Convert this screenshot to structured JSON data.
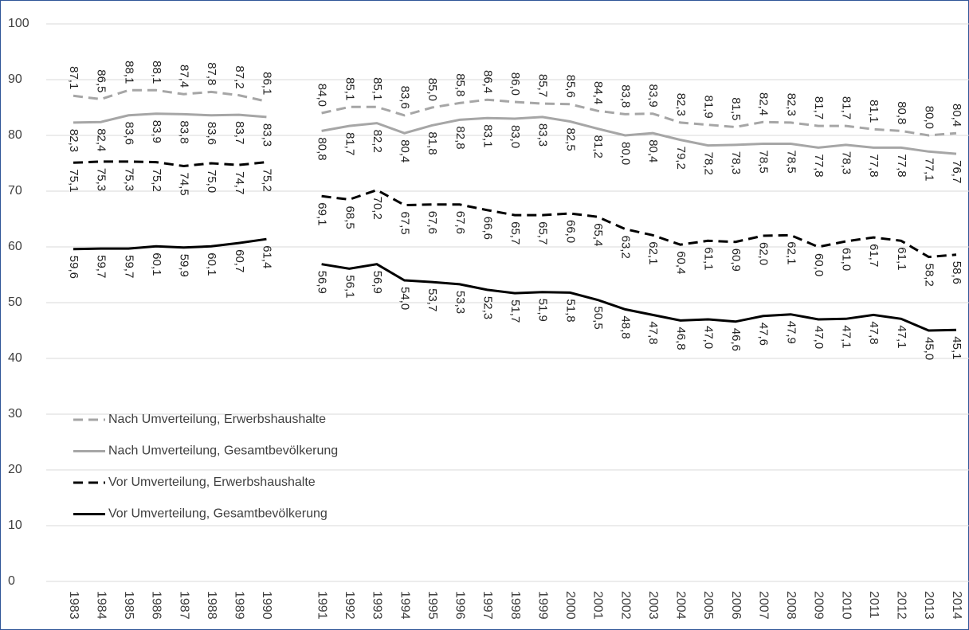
{
  "chart_data": {
    "type": "line",
    "categories": [
      "1983",
      "1984",
      "1985",
      "1986",
      "1987",
      "1988",
      "1989",
      "1990",
      null,
      "1991",
      "1992",
      "1993",
      "1994",
      "1995",
      "1996",
      "1997",
      "1998",
      "1999",
      "2000",
      "2001",
      "2002",
      "2003",
      "2004",
      "2005",
      "2006",
      "2007",
      "2008",
      "2009",
      "2010",
      "2011",
      "2012",
      "2013",
      "2014"
    ],
    "ylim": [
      0,
      100
    ],
    "yticks": [
      0,
      10,
      20,
      30,
      40,
      50,
      60,
      70,
      80,
      90,
      100
    ],
    "grid": true,
    "series": [
      {
        "name": "Nach Umverteilung, Erwerbshaushalte",
        "color": "#a6a6a6",
        "linestyle": "dashed",
        "label_position": "above",
        "values": [
          87.1,
          86.5,
          88.1,
          88.1,
          87.4,
          87.8,
          87.2,
          86.1,
          null,
          84.0,
          85.1,
          85.1,
          83.6,
          85.0,
          85.8,
          86.4,
          86.0,
          85.7,
          85.6,
          84.4,
          83.8,
          83.9,
          82.3,
          81.9,
          81.5,
          82.4,
          82.3,
          81.7,
          81.7,
          81.1,
          80.8,
          80.0,
          80.4
        ],
        "value_labels": [
          "87,1",
          "86,5",
          "88,1",
          "88,1",
          "87,4",
          "87,8",
          "87,2",
          "86,1",
          null,
          "84,0",
          "85,1",
          "85,1",
          "83,6",
          "85,0",
          "85,8",
          "86,4",
          "86,0",
          "85,7",
          "85,6",
          "84,4",
          "83,8",
          "83,9",
          "82,3",
          "81,9",
          "81,5",
          "82,4",
          "82,3",
          "81,7",
          "81,7",
          "81,1",
          "80,8",
          "80,0",
          "80,4"
        ]
      },
      {
        "name": "Nach Umverteilung, Gesamtbevölkerung",
        "color": "#a6a6a6",
        "linestyle": "solid",
        "label_position": "below",
        "values": [
          82.3,
          82.4,
          83.6,
          83.9,
          83.8,
          83.6,
          83.7,
          83.3,
          null,
          80.8,
          81.7,
          82.2,
          80.4,
          81.8,
          82.8,
          83.1,
          83.0,
          83.3,
          82.5,
          81.2,
          80.0,
          80.4,
          79.2,
          78.2,
          78.3,
          78.5,
          78.5,
          77.8,
          78.3,
          77.8,
          77.8,
          77.1,
          76.7
        ],
        "value_labels": [
          "82,3",
          "82,4",
          "83,6",
          "83,9",
          "83,8",
          "83,6",
          "83,7",
          "83,3",
          null,
          "80,8",
          "81,7",
          "82,2",
          "80,4",
          "81,8",
          "82,8",
          "83,1",
          "83,0",
          "83,3",
          "82,5",
          "81,2",
          "80,0",
          "80,4",
          "79,2",
          "78,2",
          "78,3",
          "78,5",
          "78,5",
          "77,8",
          "78,3",
          "77,8",
          "77,8",
          "77,1",
          "76,7"
        ]
      },
      {
        "name": "Vor Umverteilung, Erwerbshaushalte",
        "color": "#000000",
        "linestyle": "dashed",
        "label_position": "below",
        "values": [
          75.1,
          75.3,
          75.3,
          75.2,
          74.5,
          75.0,
          74.7,
          75.2,
          null,
          69.1,
          68.5,
          70.2,
          67.5,
          67.6,
          67.6,
          66.6,
          65.7,
          65.7,
          66.0,
          65.4,
          63.2,
          62.1,
          60.4,
          61.1,
          60.9,
          62.0,
          62.1,
          60.0,
          61.0,
          61.7,
          61.1,
          58.2,
          58.6
        ],
        "value_labels": [
          "75,1",
          "75,3",
          "75,3",
          "75,2",
          "74,5",
          "75,0",
          "74,7",
          "75,2",
          null,
          "69,1",
          "68,5",
          "70,2",
          "67,5",
          "67,6",
          "67,6",
          "66,6",
          "65,7",
          "65,7",
          "66,0",
          "65,4",
          "63,2",
          "62,1",
          "60,4",
          "61,1",
          "60,9",
          "62,0",
          "62,1",
          "60,0",
          "61,0",
          "61,7",
          "61,1",
          "58,2",
          "58,6"
        ]
      },
      {
        "name": "Vor Umverteilung, Gesamtbevölkerung",
        "color": "#000000",
        "linestyle": "solid",
        "label_position": "below",
        "values": [
          59.6,
          59.7,
          59.7,
          60.1,
          59.9,
          60.1,
          60.7,
          61.4,
          null,
          56.9,
          56.1,
          56.9,
          54.0,
          53.7,
          53.3,
          52.3,
          51.7,
          51.9,
          51.8,
          50.5,
          48.8,
          47.8,
          46.8,
          47.0,
          46.6,
          47.6,
          47.9,
          47.0,
          47.1,
          47.8,
          47.1,
          45.0,
          45.1
        ],
        "value_labels": [
          "59,6",
          "59,7",
          "59,7",
          "60,1",
          "59,9",
          "60,1",
          "60,7",
          "61,4",
          null,
          "56,9",
          "56,1",
          "56,9",
          "54,0",
          "53,7",
          "53,3",
          "52,3",
          "51,7",
          "51,9",
          "51,8",
          "50,5",
          "48,8",
          "47,8",
          "46,8",
          "47,0",
          "46,6",
          "47,6",
          "47,9",
          "47,0",
          "47,1",
          "47,8",
          "47,1",
          "45,0",
          "45,1"
        ]
      }
    ]
  }
}
